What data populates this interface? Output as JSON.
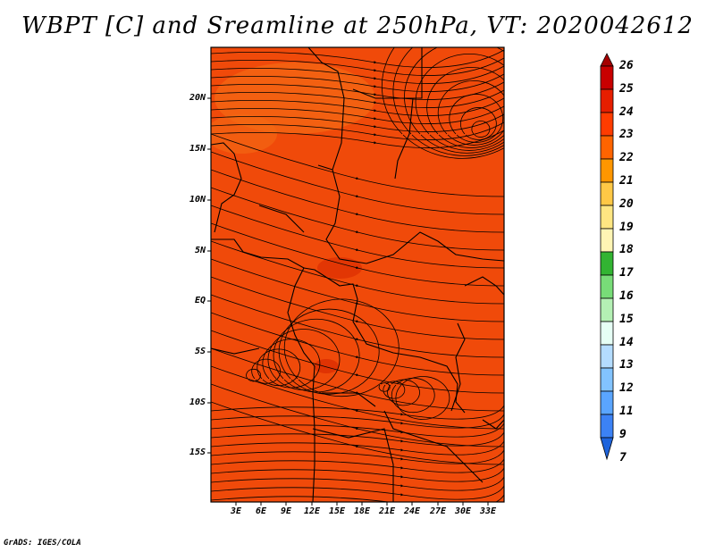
{
  "title": "WBPT [C] and Sreamline at 250hPa, VT: 2020042612",
  "credit": "GrADS: IGES/COLA",
  "lat_labels": [
    "20N",
    "15N",
    "10N",
    "5N",
    "EQ",
    "5S",
    "10S",
    "15S"
  ],
  "lon_labels": [
    "3E",
    "6E",
    "9E",
    "12E",
    "15E",
    "18E",
    "21E",
    "24E",
    "27E",
    "30E",
    "33E"
  ],
  "colorbar": {
    "labels": [
      "26",
      "25",
      "24",
      "23",
      "22",
      "21",
      "20",
      "19",
      "18",
      "17",
      "16",
      "15",
      "14",
      "13",
      "12",
      "11",
      "9",
      "7"
    ],
    "colors": [
      "#a50000",
      "#c80000",
      "#e61e00",
      "#ff3c00",
      "#ff6400",
      "#ff9600",
      "#ffc846",
      "#ffe682",
      "#fff5b4",
      "#32b432",
      "#78dc78",
      "#b4f0b4",
      "#e6fff5",
      "#b4dcff",
      "#82c3ff",
      "#5aa5ff",
      "#3c82f5",
      "#1e64dc"
    ]
  },
  "map": {
    "field_color": "#f04a0a",
    "field_color_dark": "#d82a00",
    "field_color_light": "#f46a14"
  }
}
